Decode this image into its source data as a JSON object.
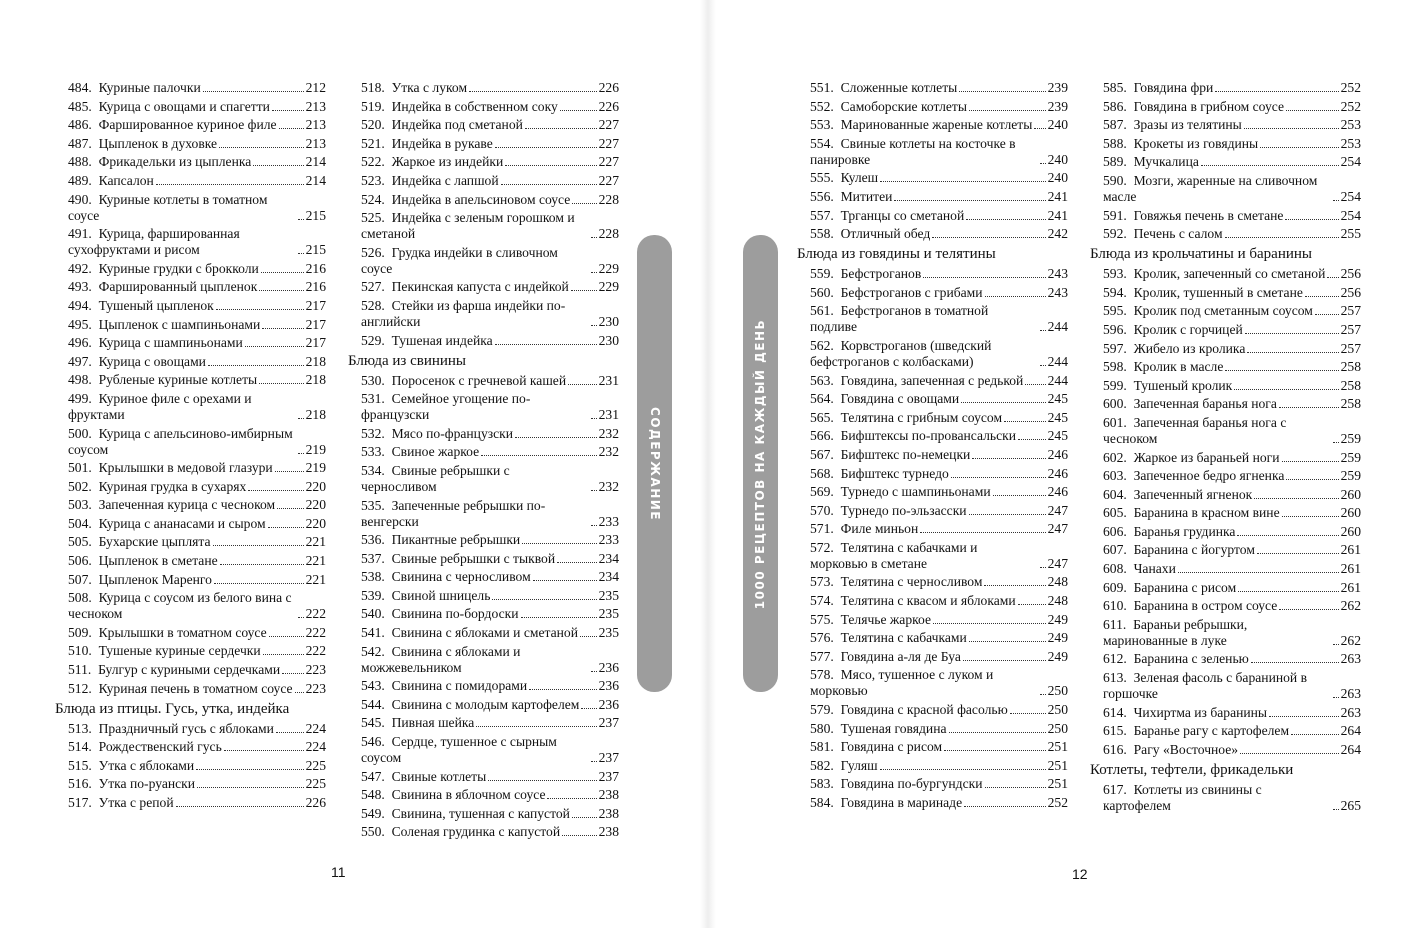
{
  "pages": [
    {
      "number": "11",
      "tab": "СОДЕРЖАНИЕ",
      "columns": [
        [
          [
            "484.",
            "Куриные палочки",
            "212"
          ],
          [
            "485.",
            "Курица с овощами и спагетти",
            "213"
          ],
          [
            "486.",
            "Фаршированное куриное филе",
            "213"
          ],
          [
            "487.",
            "Цыпленок в духовке",
            "213"
          ],
          [
            "488.",
            "Фрикадельки из цыпленка",
            "214"
          ],
          [
            "489.",
            "Капсалон",
            "214"
          ],
          [
            "490.",
            "Куриные котлеты в томатном соусе",
            "215"
          ],
          [
            "491.",
            "Курица, фаршированная сухофруктами и рисом",
            "215"
          ],
          [
            "492.",
            "Куриные грудки с брокколи",
            "216"
          ],
          [
            "493.",
            "Фаршированный цыпленок",
            "216"
          ],
          [
            "494.",
            "Тушеный цыпленок",
            "217"
          ],
          [
            "495.",
            "Цыпленок с шампиньонами",
            "217"
          ],
          [
            "496.",
            "Курица с шампиньонами",
            "217"
          ],
          [
            "497.",
            "Курица с овощами",
            "218"
          ],
          [
            "498.",
            "Рубленые куриные котлеты",
            "218"
          ],
          [
            "499.",
            "Куриное филе с орехами и фруктами",
            "218"
          ],
          [
            "500.",
            "Курица с апельсиново-имбирным соусом",
            "219"
          ],
          [
            "501.",
            "Крылышки в медовой глазури",
            "219"
          ],
          [
            "502.",
            "Куриная грудка в сухарях",
            "220"
          ],
          [
            "503.",
            "Запеченная курица с чесноком",
            "220"
          ],
          [
            "504.",
            "Курица с ананасами и сыром",
            "220"
          ],
          [
            "505.",
            "Бухарские цыплята",
            "221"
          ],
          [
            "506.",
            "Цыпленок в сметане",
            "221"
          ],
          [
            "507.",
            "Цыпленок Маренго",
            "221"
          ],
          [
            "508.",
            "Курица с соусом из белого вина с чесноком",
            "222"
          ],
          [
            "509.",
            "Крылышки в томатном соусе",
            "222"
          ],
          [
            "510.",
            "Тушеные куриные сердечки",
            "222"
          ],
          [
            "511.",
            "Булгур с куриными сердечками",
            "223"
          ],
          [
            "512.",
            "Куриная печень в томатном соусе",
            "223"
          ],
          "Блюда из птицы. Гусь, утка, индейка",
          [
            "513.",
            "Праздничный гусь с яблоками",
            "224"
          ],
          [
            "514.",
            "Рождественский гусь",
            "224"
          ],
          [
            "515.",
            "Утка с яблоками",
            "225"
          ],
          [
            "516.",
            "Утка по-руански",
            "225"
          ],
          [
            "517.",
            "Утка с репой",
            "226"
          ]
        ],
        [
          [
            "518.",
            "Утка с луком",
            "226"
          ],
          [
            "519.",
            "Индейка в собственном соку",
            "226"
          ],
          [
            "520.",
            "Индейка под сметаной",
            "227"
          ],
          [
            "521.",
            "Индейка в рукаве",
            "227"
          ],
          [
            "522.",
            "Жаркое из индейки",
            "227"
          ],
          [
            "523.",
            "Индейка с лапшой",
            "227"
          ],
          [
            "524.",
            "Индейка в апельсиновом соусе",
            "228"
          ],
          [
            "525.",
            "Индейка с зеленым горошком и сметаной",
            "228"
          ],
          [
            "526.",
            "Грудка индейки в сливочном соусе",
            "229"
          ],
          [
            "527.",
            "Пекинская капуста с индейкой",
            "229"
          ],
          [
            "528.",
            "Стейки из фарша индейки по-английски",
            "230"
          ],
          [
            "529.",
            "Тушеная индейка",
            "230"
          ],
          "Блюда из свинины",
          [
            "530.",
            "Поросенок с гречневой кашей",
            "231"
          ],
          [
            "531.",
            "Семейное угощение по-французски",
            "231"
          ],
          [
            "532.",
            "Мясо по-французски",
            "232"
          ],
          [
            "533.",
            "Свиное жаркое",
            "232"
          ],
          [
            "534.",
            "Свиные ребрышки с черносливом",
            "232"
          ],
          [
            "535.",
            "Запеченные ребрышки по-венгерски",
            "233"
          ],
          [
            "536.",
            "Пикантные ребрышки",
            "233"
          ],
          [
            "537.",
            "Свиные ребрышки с тыквой",
            "234"
          ],
          [
            "538.",
            "Свинина с черносливом",
            "234"
          ],
          [
            "539.",
            "Свиной шницель",
            "235"
          ],
          [
            "540.",
            "Свинина по-бордоски",
            "235"
          ],
          [
            "541.",
            "Свинина с яблоками и сметаной",
            "235"
          ],
          [
            "542.",
            "Свинина с яблоками и можжевельником",
            "236"
          ],
          [
            "543.",
            "Свинина с помидорами",
            "236"
          ],
          [
            "544.",
            "Свинина с молодым картофелем",
            "236"
          ],
          [
            "545.",
            "Пивная шейка",
            "237"
          ],
          [
            "546.",
            "Сердце, тушенное с сырным соусом",
            "237"
          ],
          [
            "547.",
            "Свиные котлеты",
            "237"
          ],
          [
            "548.",
            "Свинина в яблочном соусе",
            "238"
          ],
          [
            "549.",
            "Свинина, тушенная с капустой",
            "238"
          ],
          [
            "550.",
            "Соленая грудинка с капустой",
            "238"
          ]
        ]
      ]
    },
    {
      "number": "12",
      "tab": "1000 РЕЦЕПТОВ НА КАЖДЫЙ ДЕНЬ",
      "columns": [
        [
          [
            "551.",
            "Сложенные котлеты",
            "239"
          ],
          [
            "552.",
            "Самоборские котлеты",
            "239"
          ],
          [
            "553.",
            "Маринованные жареные котлеты",
            "240"
          ],
          [
            "554.",
            "Свиные котлеты на косточке в панировке",
            "240"
          ],
          [
            "555.",
            "Кулеш",
            "240"
          ],
          [
            "556.",
            "Мититеи",
            "241"
          ],
          [
            "557.",
            "Трганцы со сметаной",
            "241"
          ],
          [
            "558.",
            "Отличный обед",
            "242"
          ],
          "Блюда из говядины и телятины",
          [
            "559.",
            "Бефстроганов",
            "243"
          ],
          [
            "560.",
            "Бефстроганов с грибами",
            "243"
          ],
          [
            "561.",
            "Бефстроганов в томатной подливе",
            "244"
          ],
          [
            "562.",
            "Корвстроганов (шведский бефстроганов с колбасками)",
            "244"
          ],
          [
            "563.",
            "Говядина, запеченная с редькой",
            "244"
          ],
          [
            "564.",
            "Говядина с овощами",
            "245"
          ],
          [
            "565.",
            "Телятина с грибным соусом",
            "245"
          ],
          [
            "566.",
            "Бифштексы по-провансальски",
            "245"
          ],
          [
            "567.",
            "Бифштекс по-немецки",
            "246"
          ],
          [
            "568.",
            "Бифштекс турнедо",
            "246"
          ],
          [
            "569.",
            "Турнедо с шампиньонами",
            "246"
          ],
          [
            "570.",
            "Турнедо по-эльзасски",
            "247"
          ],
          [
            "571.",
            "Филе миньон",
            "247"
          ],
          [
            "572.",
            "Телятина с кабачками и морковью в сметане",
            "247"
          ],
          [
            "573.",
            "Телятина с черносливом",
            "248"
          ],
          [
            "574.",
            "Телятина с квасом и яблоками",
            "248"
          ],
          [
            "575.",
            "Телячье жаркое",
            "249"
          ],
          [
            "576.",
            "Телятина с кабачками",
            "249"
          ],
          [
            "577.",
            "Говядина а-ля де Буа",
            "249"
          ],
          [
            "578.",
            "Мясо, тушенное с луком и морковью",
            "250"
          ],
          [
            "579.",
            "Говядина с красной фасолью",
            "250"
          ],
          [
            "580.",
            "Тушеная говядина",
            "250"
          ],
          [
            "581.",
            "Говядина с рисом",
            "251"
          ],
          [
            "582.",
            "Гуляш",
            "251"
          ],
          [
            "583.",
            "Говядина по-бургундски",
            "251"
          ],
          [
            "584.",
            "Говядина в маринаде",
            "252"
          ]
        ],
        [
          [
            "585.",
            "Говядина фри",
            "252"
          ],
          [
            "586.",
            "Говядина в грибном соусе",
            "252"
          ],
          [
            "587.",
            "Зразы из телятины",
            "253"
          ],
          [
            "588.",
            "Крокеты из говядины",
            "253"
          ],
          [
            "589.",
            "Мучкалица",
            "254"
          ],
          [
            "590.",
            "Мозги, жаренные на сливочном масле",
            "254"
          ],
          [
            "591.",
            "Говяжья печень в сметане",
            "254"
          ],
          [
            "592.",
            "Печень с салом",
            "255"
          ],
          "Блюда из крольчатины и баранины",
          [
            "593.",
            "Кролик, запеченный со сметаной",
            "256"
          ],
          [
            "594.",
            "Кролик, тушенный в сметане",
            "256"
          ],
          [
            "595.",
            "Кролик под сметанным соусом",
            "257"
          ],
          [
            "596.",
            "Кролик с горчицей",
            "257"
          ],
          [
            "597.",
            "Жибело из кролика",
            "257"
          ],
          [
            "598.",
            "Кролик в масле",
            "258"
          ],
          [
            "599.",
            "Тушеный кролик",
            "258"
          ],
          [
            "600.",
            "Запеченная баранья нога",
            "258"
          ],
          [
            "601.",
            "Запеченная баранья нога с чесноком",
            "259"
          ],
          [
            "602.",
            "Жаркое из бараньей ноги",
            "259"
          ],
          [
            "603.",
            "Запеченное бедро ягненка",
            "259"
          ],
          [
            "604.",
            "Запеченный ягненок",
            "260"
          ],
          [
            "605.",
            "Баранина в красном вине",
            "260"
          ],
          [
            "606.",
            "Баранья грудинка",
            "260"
          ],
          [
            "607.",
            "Баранина с йогуртом",
            "261"
          ],
          [
            "608.",
            "Чанахи",
            "261"
          ],
          [
            "609.",
            "Баранина с рисом",
            "261"
          ],
          [
            "610.",
            "Баранина в остром соусе",
            "262"
          ],
          [
            "611.",
            "Бараньи ребрышки, маринованные в луке",
            "262"
          ],
          [
            "612.",
            "Баранина с зеленью",
            "263"
          ],
          [
            "613.",
            "Зеленая фасоль с бараниной в горшочке",
            "263"
          ],
          [
            "614.",
            "Чихиртма из баранины",
            "263"
          ],
          [
            "615.",
            "Баранье рагу с картофелем",
            "264"
          ],
          [
            "616.",
            "Рагу «Восточное»",
            "264"
          ],
          "Котлеты, тефтели, фрикадельки",
          [
            "617.",
            "Котлеты из свинины с картофелем",
            "265"
          ]
        ]
      ]
    }
  ]
}
